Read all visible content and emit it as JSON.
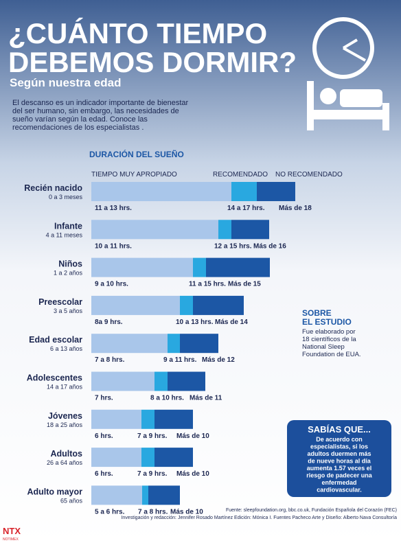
{
  "header": {
    "title_line1": "¿CUÁNTO TIEMPO",
    "title_line2": "DEBEMOS DORMIR?",
    "subtitle": "Según nuestra edad",
    "intro": [
      "El descanso es un indicador importante de bienestar",
      "del ser humano, sin embargo, las necesidades de",
      "sueño varían según la edad. Conoce las",
      "recomendaciones de los especialistas ."
    ]
  },
  "section_title": "DURACIÓN DEL SUEÑO",
  "legend": [
    "TIEMPO MUY APROPIADO",
    "RECOMENDADO",
    "NO RECOMENDADO"
  ],
  "groups": [
    {
      "name": "Recién nacido",
      "age": "0 a 3 meses",
      "labels": [
        "11 a 13 hrs.",
        "14 a 17 hrs.",
        "Más de 18"
      ]
    },
    {
      "name": "Infante",
      "age": "4 a 11 meses",
      "labels": [
        "10 a 11 hrs.",
        "12 a 15 hrs.",
        "Más de 16"
      ]
    },
    {
      "name": "Niños",
      "age": "1 a 2 años",
      "labels": [
        "9 a 10 hrs.",
        "11 a 15 hrs.",
        "Más de 15"
      ]
    },
    {
      "name": "Preescolar",
      "age": "3 a 5 años",
      "labels": [
        "8a 9 hrs.",
        "10 a 13 hrs.",
        "Más de 14"
      ]
    },
    {
      "name": "Edad escolar",
      "age": "6 a 13 años",
      "labels": [
        "7 a 8 hrs.",
        "9 a 11 hrs.",
        "Más de 12"
      ]
    },
    {
      "name": "Adolescentes",
      "age": "14 a 17 años",
      "labels": [
        "7 hrs.",
        "8 a 10 hrs.",
        "Más de 11"
      ]
    },
    {
      "name": "Jóvenes",
      "age": "18 a 25 años",
      "labels": [
        "6 hrs.",
        "7 a 9 hrs.",
        "Más de 10"
      ]
    },
    {
      "name": "Adultos",
      "age": "26 a 64 años",
      "labels": [
        "6 hrs.",
        "7 a 9 hrs.",
        "Más de 10"
      ]
    },
    {
      "name": "Adulto mayor",
      "age": "65 años",
      "labels": [
        "5 a 6 hrs.",
        "7 a 8 hrs.",
        "Más de 10"
      ]
    }
  ],
  "about": {
    "title": [
      "SOBRE",
      "EL ESTUDIO"
    ],
    "text": [
      "Fue elaborado por",
      "18 científicos de la",
      "National Sleep",
      "Foundation de EUA."
    ]
  },
  "did_you_know": {
    "title": "SABÍAS QUE...",
    "text": [
      "De acuerdo con",
      "especialistas, si los",
      "adultos duermen más",
      "de nueve horas al día",
      "aumenta 1.57 veces el",
      "riesgo de padecer una",
      "enfermedad",
      "cardiovascular."
    ]
  },
  "footer": {
    "sources": "Fuente: sleepfoundation.org,  bbc.co.uk, Fundación Española del Corazón (FEC)",
    "credits": "Investigación y redacción: Jennifer Rosado Martínez  Edición: Mónica I. Fuentes Pacheco  Arte y Diseño: Alberto Nava Consultoría"
  },
  "logo": {
    "text": "NTX",
    "sub": "NOTIMEX"
  }
}
